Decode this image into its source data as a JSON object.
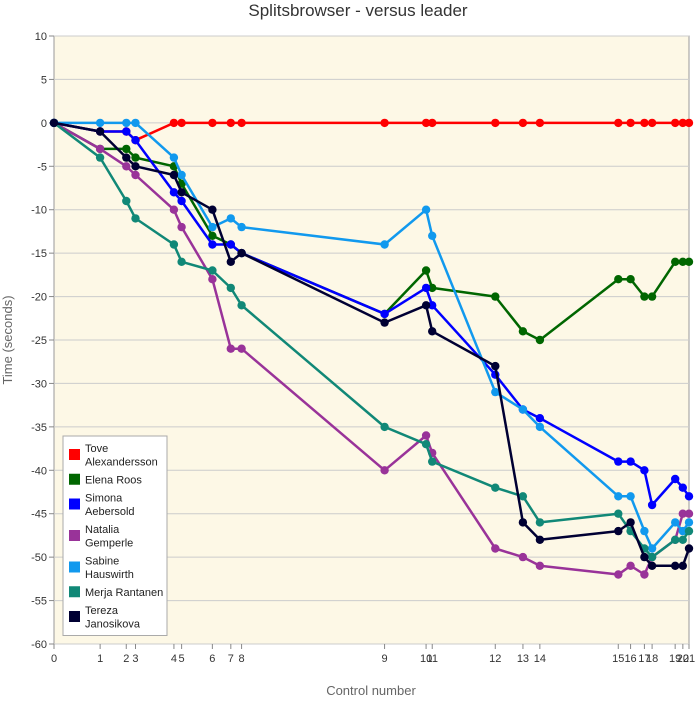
{
  "chart_data": {
    "type": "line",
    "title": "Splitsbrowser - versus leader",
    "xlabel": "Control number",
    "ylabel": "Time (seconds)",
    "ylim": [
      -60,
      10
    ],
    "yticks": [
      10,
      5,
      0,
      -5,
      -10,
      -15,
      -20,
      -25,
      -30,
      -35,
      -40,
      -45,
      -50,
      -55,
      -60
    ],
    "xticks": [
      {
        "label": "0",
        "x": 0
      },
      {
        "label": "1",
        "x": 3.0
      },
      {
        "label": "2",
        "x": 4.7
      },
      {
        "label": "3",
        "x": 5.3
      },
      {
        "label": "4",
        "x": 7.8
      },
      {
        "label": "5",
        "x": 8.3
      },
      {
        "label": "6",
        "x": 10.3
      },
      {
        "label": "7",
        "x": 11.5
      },
      {
        "label": "8",
        "x": 12.2
      },
      {
        "label": "9",
        "x": 21.5
      },
      {
        "label": "10",
        "x": 24.2
      },
      {
        "label": "11",
        "x": 24.6
      },
      {
        "label": "12",
        "x": 28.7
      },
      {
        "label": "13",
        "x": 30.5
      },
      {
        "label": "14",
        "x": 31.6
      },
      {
        "label": "15",
        "x": 36.7
      },
      {
        "label": "16",
        "x": 37.5
      },
      {
        "label": "17",
        "x": 38.4
      },
      {
        "label": "18",
        "x": 38.9
      },
      {
        "label": "19",
        "x": 40.4
      },
      {
        "label": "20",
        "x": 40.9
      },
      {
        "label": "21",
        "x": 41.3
      }
    ],
    "xlim": [
      0,
      41.3
    ],
    "grid": true,
    "legend_position": "bottom-left",
    "series": [
      {
        "name": "Tove Alexandersson",
        "color": "#ff0000",
        "x": [
          0,
          3.0,
          4.7,
          5.3,
          7.8,
          8.3,
          10.3,
          11.5,
          12.2,
          21.5,
          24.2,
          24.6,
          28.7,
          30.5,
          31.6,
          36.7,
          37.5,
          38.4,
          38.9,
          40.4,
          40.9,
          41.3
        ],
        "values": [
          0,
          -1,
          -1,
          -2,
          0,
          0,
          0,
          0,
          0,
          0,
          0,
          0,
          0,
          0,
          0,
          0,
          0,
          0,
          0,
          0,
          0,
          0
        ]
      },
      {
        "name": "Elena Roos",
        "color": "#006600",
        "x": [
          0,
          3.0,
          4.7,
          5.3,
          7.8,
          8.3,
          10.3,
          11.5,
          12.2,
          21.5,
          24.2,
          24.6,
          28.7,
          30.5,
          31.6,
          36.7,
          37.5,
          38.4,
          38.9,
          40.4,
          40.9,
          41.3
        ],
        "values": [
          0,
          -3,
          -3,
          -4,
          -5,
          -7,
          -13,
          -14,
          -15,
          -22,
          -17,
          -19,
          -20,
          -24,
          -25,
          -18,
          -18,
          -20,
          -20,
          -16,
          -16,
          -16
        ]
      },
      {
        "name": "Simona Aebersold",
        "color": "#0000ff",
        "x": [
          0,
          3.0,
          4.7,
          5.3,
          7.8,
          8.3,
          10.3,
          11.5,
          12.2,
          21.5,
          24.2,
          24.6,
          28.7,
          30.5,
          31.6,
          36.7,
          37.5,
          38.4,
          38.9,
          40.4,
          40.9,
          41.3
        ],
        "values": [
          0,
          -1,
          -1,
          -2,
          -8,
          -9,
          -14,
          -14,
          -15,
          -22,
          -19,
          -21,
          -29,
          -33,
          -34,
          -39,
          -39,
          -40,
          -44,
          -41,
          -42,
          -43
        ]
      },
      {
        "name": "Natalia Gemperle",
        "color": "#993399",
        "x": [
          0,
          3.0,
          4.7,
          5.3,
          7.8,
          8.3,
          10.3,
          11.5,
          12.2,
          21.5,
          24.2,
          24.6,
          28.7,
          30.5,
          31.6,
          36.7,
          37.5,
          38.4,
          38.9,
          40.4,
          40.9,
          41.3
        ],
        "values": [
          0,
          -3,
          -5,
          -6,
          -10,
          -12,
          -18,
          -26,
          -26,
          -40,
          -36,
          -38,
          -49,
          -50,
          -51,
          -52,
          -51,
          -52,
          -50,
          -48,
          -45,
          -45
        ]
      },
      {
        "name": "Sabine Hauswirth",
        "color": "#1199ee",
        "x": [
          0,
          3.0,
          4.7,
          5.3,
          7.8,
          8.3,
          10.3,
          11.5,
          12.2,
          21.5,
          24.2,
          24.6,
          28.7,
          30.5,
          31.6,
          36.7,
          37.5,
          38.4,
          38.9,
          40.4,
          40.9,
          41.3
        ],
        "values": [
          0,
          0,
          0,
          0,
          -4,
          -6,
          -12,
          -11,
          -12,
          -14,
          -10,
          -13,
          -31,
          -33,
          -35,
          -43,
          -43,
          -47,
          -49,
          -46,
          -47,
          -46
        ]
      },
      {
        "name": "Merja Rantanen",
        "color": "#118877",
        "x": [
          0,
          3.0,
          4.7,
          5.3,
          7.8,
          8.3,
          10.3,
          11.5,
          12.2,
          21.5,
          24.2,
          24.6,
          28.7,
          30.5,
          31.6,
          36.7,
          37.5,
          38.4,
          38.9,
          40.4,
          40.9,
          41.3
        ],
        "values": [
          0,
          -4,
          -9,
          -11,
          -14,
          -16,
          -17,
          -19,
          -21,
          -35,
          -37,
          -39,
          -42,
          -43,
          -46,
          -45,
          -47,
          -49,
          -50,
          -48,
          -48,
          -47
        ]
      },
      {
        "name": "Tereza Janosikova",
        "color": "#000033",
        "x": [
          0,
          3.0,
          4.7,
          5.3,
          7.8,
          8.3,
          10.3,
          11.5,
          12.2,
          21.5,
          24.2,
          24.6,
          28.7,
          30.5,
          31.6,
          36.7,
          37.5,
          38.4,
          38.9,
          40.4,
          40.9,
          41.3
        ],
        "values": [
          0,
          -1,
          -4,
          -5,
          -6,
          -8,
          -10,
          -16,
          -15,
          -23,
          -21,
          -24,
          -28,
          -46,
          -48,
          -47,
          -46,
          -50,
          -51,
          -51,
          -51,
          -49
        ]
      }
    ]
  },
  "legend": {
    "items": [
      {
        "lines": [
          "Tove",
          "Alexandersson"
        ],
        "color": "#ff0000"
      },
      {
        "lines": [
          "Elena Roos"
        ],
        "color": "#006600"
      },
      {
        "lines": [
          "Simona",
          "Aebersold"
        ],
        "color": "#0000ff"
      },
      {
        "lines": [
          "Natalia",
          "Gemperle"
        ],
        "color": "#993399"
      },
      {
        "lines": [
          "Sabine",
          "Hauswirth"
        ],
        "color": "#1199ee"
      },
      {
        "lines": [
          "Merja Rantanen"
        ],
        "color": "#118877"
      },
      {
        "lines": [
          "Tereza",
          "Janosikova"
        ],
        "color": "#000033"
      }
    ]
  },
  "colors": {
    "plot_background": "#fdf8e6",
    "grid": "#cccccc"
  }
}
